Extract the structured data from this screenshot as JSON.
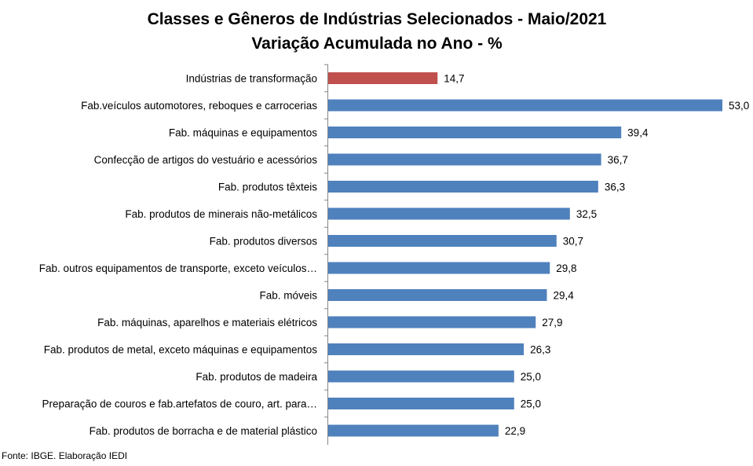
{
  "chart_data": {
    "type": "bar",
    "orientation": "horizontal",
    "title": "Classes e Gêneros de Indústrias Selecionados - Maio/2021",
    "subtitle": "Variação Acumulada no Ano - %",
    "categories": [
      "Indústrias de transformação",
      "Fab.veículos automotores, reboques e carrocerias",
      "Fab. máquinas e equipamentos",
      "Confecção de artigos do vestuário e acessórios",
      "Fab. produtos têxteis",
      "Fab. produtos de minerais não-metálicos",
      "Fab. produtos diversos",
      "Fab. outros equipamentos de transporte, exceto veículos…",
      "Fab. móveis",
      "Fab. máquinas, aparelhos e materiais elétricos",
      "Fab. produtos de metal, exceto máquinas e equipamentos",
      "Fab. produtos de madeira",
      "Preparação de couros e fab.artefatos de couro, art. para…",
      "Fab. produtos de borracha e de material plástico"
    ],
    "values": [
      14.7,
      53.0,
      39.4,
      36.7,
      36.3,
      32.5,
      30.7,
      29.8,
      29.4,
      27.9,
      26.3,
      25.0,
      25.0,
      22.9
    ],
    "value_labels": [
      "14,7",
      "53,0",
      "39,4",
      "36,7",
      "36,3",
      "32,5",
      "30,7",
      "29,8",
      "29,4",
      "27,9",
      "26,3",
      "25,0",
      "25,0",
      "22,9"
    ],
    "xlim": [
      0,
      53
    ],
    "grid": false,
    "legend": "none",
    "colors": {
      "highlight": "#C0504D",
      "default": "#4F81BD"
    },
    "highlight_index": 0
  },
  "footer": {
    "source": "Fonte: IBGE. Elaboração IEDI"
  }
}
